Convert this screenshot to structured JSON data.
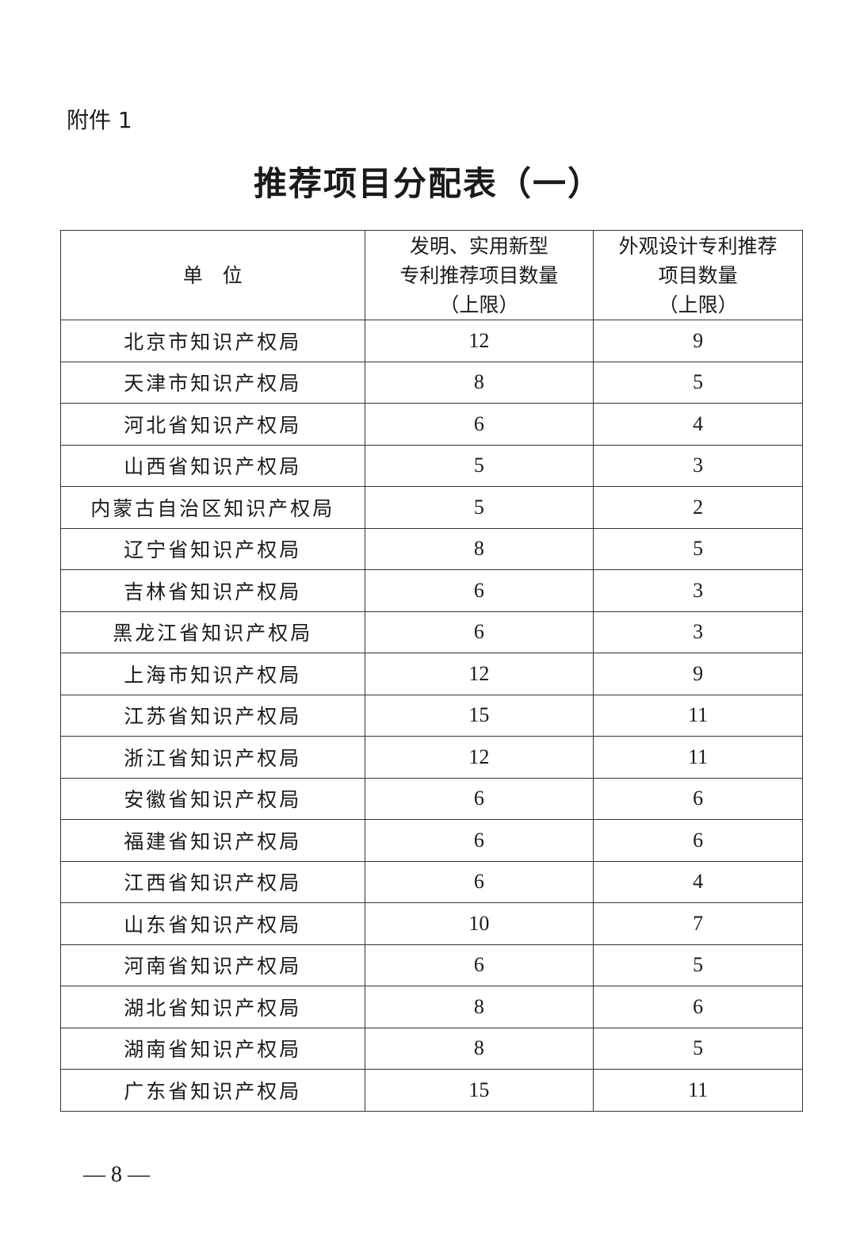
{
  "attachment_label": "附件 1",
  "title": "推荐项目分配表（一）",
  "table": {
    "headers": [
      "单　位",
      "发明、实用新型专利推荐项目数量（上限）",
      "外观设计专利推荐项目数量（上限）"
    ],
    "header_lines": [
      [
        "单　位"
      ],
      [
        "发明、实用新型",
        "专利推荐项目数量",
        "（上限）"
      ],
      [
        "外观设计专利推荐",
        "项目数量",
        "（上限）"
      ]
    ],
    "rows": [
      [
        "北京市知识产权局",
        "12",
        "9"
      ],
      [
        "天津市知识产权局",
        "8",
        "5"
      ],
      [
        "河北省知识产权局",
        "6",
        "4"
      ],
      [
        "山西省知识产权局",
        "5",
        "3"
      ],
      [
        "内蒙古自治区知识产权局",
        "5",
        "2"
      ],
      [
        "辽宁省知识产权局",
        "8",
        "5"
      ],
      [
        "吉林省知识产权局",
        "6",
        "3"
      ],
      [
        "黑龙江省知识产权局",
        "6",
        "3"
      ],
      [
        "上海市知识产权局",
        "12",
        "9"
      ],
      [
        "江苏省知识产权局",
        "15",
        "11"
      ],
      [
        "浙江省知识产权局",
        "12",
        "11"
      ],
      [
        "安徽省知识产权局",
        "6",
        "6"
      ],
      [
        "福建省知识产权局",
        "6",
        "6"
      ],
      [
        "江西省知识产权局",
        "6",
        "4"
      ],
      [
        "山东省知识产权局",
        "10",
        "7"
      ],
      [
        "河南省知识产权局",
        "6",
        "5"
      ],
      [
        "湖北省知识产权局",
        "8",
        "6"
      ],
      [
        "湖南省知识产权局",
        "8",
        "5"
      ],
      [
        "广东省知识产权局",
        "15",
        "11"
      ]
    ]
  },
  "page_number": "— 8 —"
}
